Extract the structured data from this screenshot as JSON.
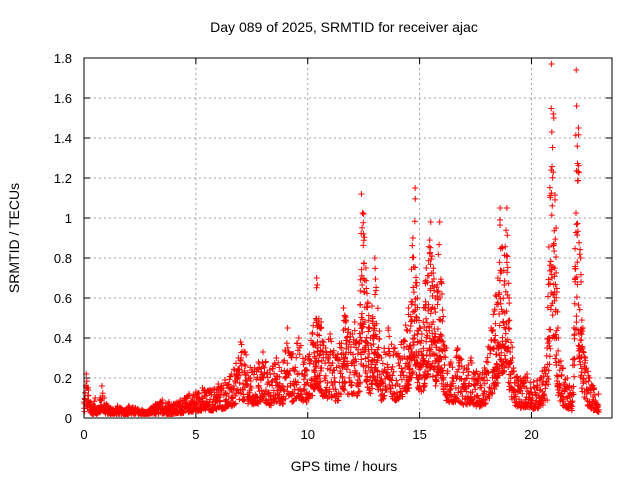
{
  "chart_data": {
    "type": "scatter",
    "title": "Day 089 of 2025, SRMTID for receiver ajac",
    "xlabel": "GPS time / hours",
    "ylabel": "SRMTID / TECUs",
    "xlim": [
      0,
      23.6
    ],
    "ylim": [
      0,
      1.8
    ],
    "xticks": [
      0,
      5,
      10,
      15,
      20
    ],
    "yticks": [
      0,
      0.2,
      0.4,
      0.6,
      0.8,
      1,
      1.2,
      1.4,
      1.6,
      1.8
    ],
    "xtick_labels": [
      "0",
      "5",
      "10",
      "15",
      "20"
    ],
    "ytick_labels": [
      "0",
      "0.2",
      "0.4",
      "0.6",
      "0.8",
      "1",
      "1.2",
      "1.4",
      "1.6",
      "1.8"
    ],
    "grid": true,
    "marker": "plus",
    "color": "#ff0000",
    "series": [
      {
        "name": "SRMTID",
        "note": "approximate envelope of the dense point cloud (x in hours, y in TECU)",
        "x": [
          0.0,
          0.1,
          0.2,
          0.3,
          0.4,
          0.5,
          0.6,
          0.7,
          0.8,
          0.9,
          1.0,
          1.2,
          1.5,
          1.8,
          2.0,
          2.3,
          2.6,
          2.8,
          3.0,
          3.2,
          3.5,
          3.8,
          4.0,
          4.3,
          4.5,
          4.7,
          5.0,
          5.3,
          5.6,
          6.0,
          6.3,
          6.6,
          6.9,
          7.0,
          7.2,
          7.5,
          7.8,
          8.0,
          8.3,
          8.6,
          8.9,
          9.1,
          9.3,
          9.6,
          9.9,
          10.2,
          10.4,
          10.6,
          10.8,
          11.0,
          11.3,
          11.6,
          11.9,
          12.1,
          12.3,
          12.4,
          12.5,
          12.6,
          12.8,
          13.0,
          13.3,
          13.6,
          13.9,
          14.2,
          14.5,
          14.7,
          14.8,
          14.9,
          15.1,
          15.3,
          15.5,
          15.7,
          15.9,
          16.0,
          16.2,
          16.4,
          16.7,
          17.0,
          17.3,
          17.6,
          17.9,
          18.2,
          18.5,
          18.6,
          18.7,
          18.9,
          19.0,
          19.2,
          19.5,
          19.8,
          20.1,
          20.4,
          20.7,
          20.9,
          21.0,
          21.1,
          21.2,
          21.4,
          21.6,
          21.8,
          21.9,
          22.0,
          22.1,
          22.2,
          22.3,
          22.4,
          22.6,
          22.8,
          23.0
        ],
        "y": [
          0.08,
          0.22,
          0.14,
          0.08,
          0.06,
          0.1,
          0.05,
          0.09,
          0.16,
          0.1,
          0.07,
          0.05,
          0.06,
          0.04,
          0.06,
          0.05,
          0.04,
          0.03,
          0.05,
          0.07,
          0.09,
          0.08,
          0.07,
          0.09,
          0.1,
          0.12,
          0.13,
          0.15,
          0.14,
          0.17,
          0.19,
          0.22,
          0.3,
          0.38,
          0.33,
          0.24,
          0.28,
          0.33,
          0.24,
          0.3,
          0.28,
          0.45,
          0.32,
          0.4,
          0.3,
          0.42,
          0.7,
          0.48,
          0.35,
          0.42,
          0.3,
          0.55,
          0.42,
          0.48,
          0.38,
          1.12,
          1.02,
          0.75,
          0.4,
          0.8,
          0.3,
          0.45,
          0.35,
          0.38,
          0.55,
          0.9,
          1.15,
          0.6,
          0.42,
          0.75,
          0.98,
          0.6,
          0.98,
          0.62,
          0.35,
          0.28,
          0.35,
          0.25,
          0.3,
          0.22,
          0.25,
          0.45,
          0.7,
          1.05,
          0.85,
          1.05,
          0.6,
          0.25,
          0.2,
          0.22,
          0.18,
          0.2,
          0.35,
          1.77,
          1.5,
          0.95,
          0.4,
          0.25,
          0.2,
          0.15,
          0.45,
          1.74,
          1.45,
          0.8,
          0.45,
          0.3,
          0.2,
          0.15,
          0.12
        ]
      }
    ]
  }
}
